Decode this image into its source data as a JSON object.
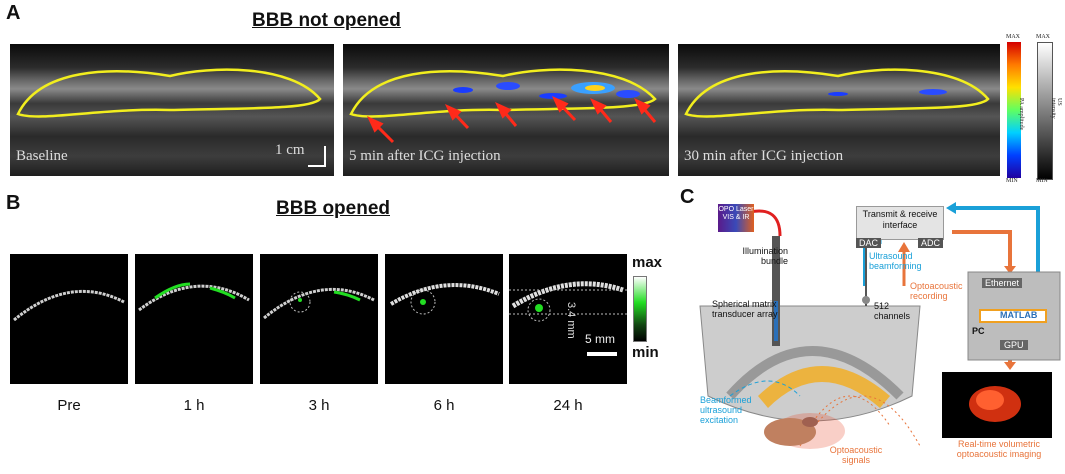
{
  "panelA": {
    "letter": "A",
    "heading": "BBB not opened",
    "images": [
      {
        "label": "Baseline"
      },
      {
        "label": "5 min after ICG injection"
      },
      {
        "label": "30 min after ICG injection"
      }
    ],
    "scalebar": "1 cm",
    "colorbar1": {
      "max": "MAX",
      "min": "MIN",
      "title": "PA amplitude"
    },
    "colorbar2": {
      "max": "MAX",
      "min": "MIN",
      "title": "US intensity"
    }
  },
  "panelB": {
    "letter": "B",
    "heading": "BBB opened",
    "timepoints": [
      "Pre",
      "1 h",
      "3 h",
      "6 h",
      "24 h"
    ],
    "colorbar": {
      "max": "max",
      "min": "min"
    },
    "depth_label": "3.4 mm",
    "scalebar": "5 mm"
  },
  "panelC": {
    "letter": "C",
    "laser": "OPO Laser VIS & IR",
    "illumination": "Illumination bundle",
    "interface": "Transmit & receive interface",
    "dac": "DAC",
    "adc": "ADC",
    "us_beamforming": "Ultrasound beamforming",
    "oa_recording": "Optoacoustic recording",
    "transducer": "Spherical matrix transducer array",
    "channels": "512 channels",
    "ethernet": "Ethernet",
    "matlab": "MATLAB",
    "pc": "PC",
    "gpu": "GPU",
    "beamformed": "Beamformed ultrasound excitation",
    "oa_signals": "Optoacoustic signals",
    "realtime": "Real-time volumetric optoacoustic imaging"
  },
  "colors": {
    "outline": "#f2ee1e",
    "arrow": "#ff2a1a",
    "orange": "#e8743b",
    "blue": "#1aa0d8",
    "green": "#22dd22"
  }
}
